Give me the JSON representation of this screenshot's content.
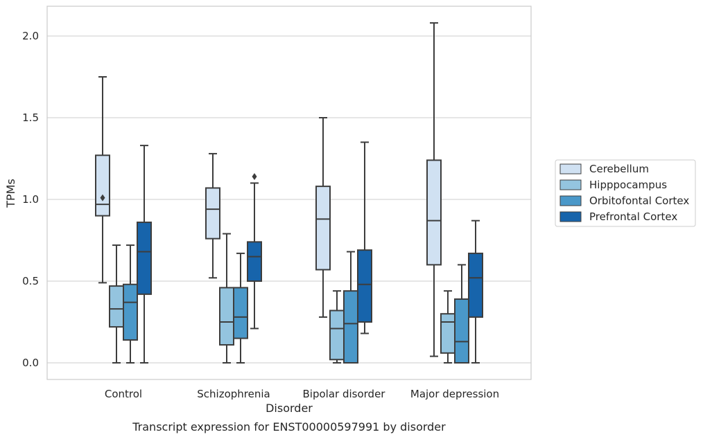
{
  "chart_data": {
    "type": "box",
    "title": "",
    "caption": "Transcript expression for ENST00000597991 by disorder",
    "xlabel": "Disorder",
    "ylabel": "TPMs",
    "ylim": [
      -0.1,
      2.2
    ],
    "yticks": [
      "0.0",
      "0.5",
      "1.0",
      "1.5",
      "2.0"
    ],
    "grid": "horizontal",
    "legend_position": "right",
    "categories": [
      "Control",
      "Schizophrenia",
      "Bipolar disorder",
      "Major depression"
    ],
    "series": [
      {
        "name": "Cerebellum",
        "color": "#d0e1f2",
        "boxes": [
          {
            "whislo": 0.49,
            "q1": 0.9,
            "med": 0.97,
            "q3": 1.27,
            "whishi": 1.75,
            "fliers": [
              1.01
            ]
          },
          {
            "whislo": 0.52,
            "q1": 0.76,
            "med": 0.94,
            "q3": 1.07,
            "whishi": 1.28,
            "fliers": []
          },
          {
            "whislo": 0.28,
            "q1": 0.57,
            "med": 0.88,
            "q3": 1.08,
            "whishi": 1.5,
            "fliers": []
          },
          {
            "whislo": 0.04,
            "q1": 0.6,
            "med": 0.87,
            "q3": 1.24,
            "whishi": 2.08,
            "fliers": []
          }
        ]
      },
      {
        "name": "Hipppocampus",
        "color": "#94c4df",
        "boxes": [
          {
            "whislo": 0.0,
            "q1": 0.22,
            "med": 0.33,
            "q3": 0.47,
            "whishi": 0.72,
            "fliers": []
          },
          {
            "whislo": 0.0,
            "q1": 0.11,
            "med": 0.25,
            "q3": 0.46,
            "whishi": 0.79,
            "fliers": []
          },
          {
            "whislo": 0.0,
            "q1": 0.02,
            "med": 0.21,
            "q3": 0.32,
            "whishi": 0.44,
            "fliers": []
          },
          {
            "whislo": 0.0,
            "q1": 0.06,
            "med": 0.25,
            "q3": 0.3,
            "whishi": 0.44,
            "fliers": []
          }
        ]
      },
      {
        "name": "Orbitofontal Cortex",
        "color": "#4a98c9",
        "boxes": [
          {
            "whislo": 0.0,
            "q1": 0.14,
            "med": 0.37,
            "q3": 0.48,
            "whishi": 0.72,
            "fliers": []
          },
          {
            "whislo": 0.0,
            "q1": 0.15,
            "med": 0.28,
            "q3": 0.46,
            "whishi": 0.67,
            "fliers": []
          },
          {
            "whislo": 0.0,
            "q1": 0.0,
            "med": 0.24,
            "q3": 0.44,
            "whishi": 0.68,
            "fliers": []
          },
          {
            "whislo": 0.0,
            "q1": 0.0,
            "med": 0.13,
            "q3": 0.39,
            "whishi": 0.6,
            "fliers": []
          }
        ]
      },
      {
        "name": "Prefrontal Cortex",
        "color": "#1764ab",
        "boxes": [
          {
            "whislo": 0.0,
            "q1": 0.42,
            "med": 0.68,
            "q3": 0.86,
            "whishi": 1.33,
            "fliers": []
          },
          {
            "whislo": 0.21,
            "q1": 0.5,
            "med": 0.65,
            "q3": 0.74,
            "whishi": 1.1,
            "fliers": [
              1.14
            ]
          },
          {
            "whislo": 0.18,
            "q1": 0.25,
            "med": 0.48,
            "q3": 0.69,
            "whishi": 1.35,
            "fliers": []
          },
          {
            "whislo": 0.0,
            "q1": 0.28,
            "med": 0.52,
            "q3": 0.67,
            "whishi": 0.87,
            "fliers": []
          }
        ]
      }
    ]
  }
}
